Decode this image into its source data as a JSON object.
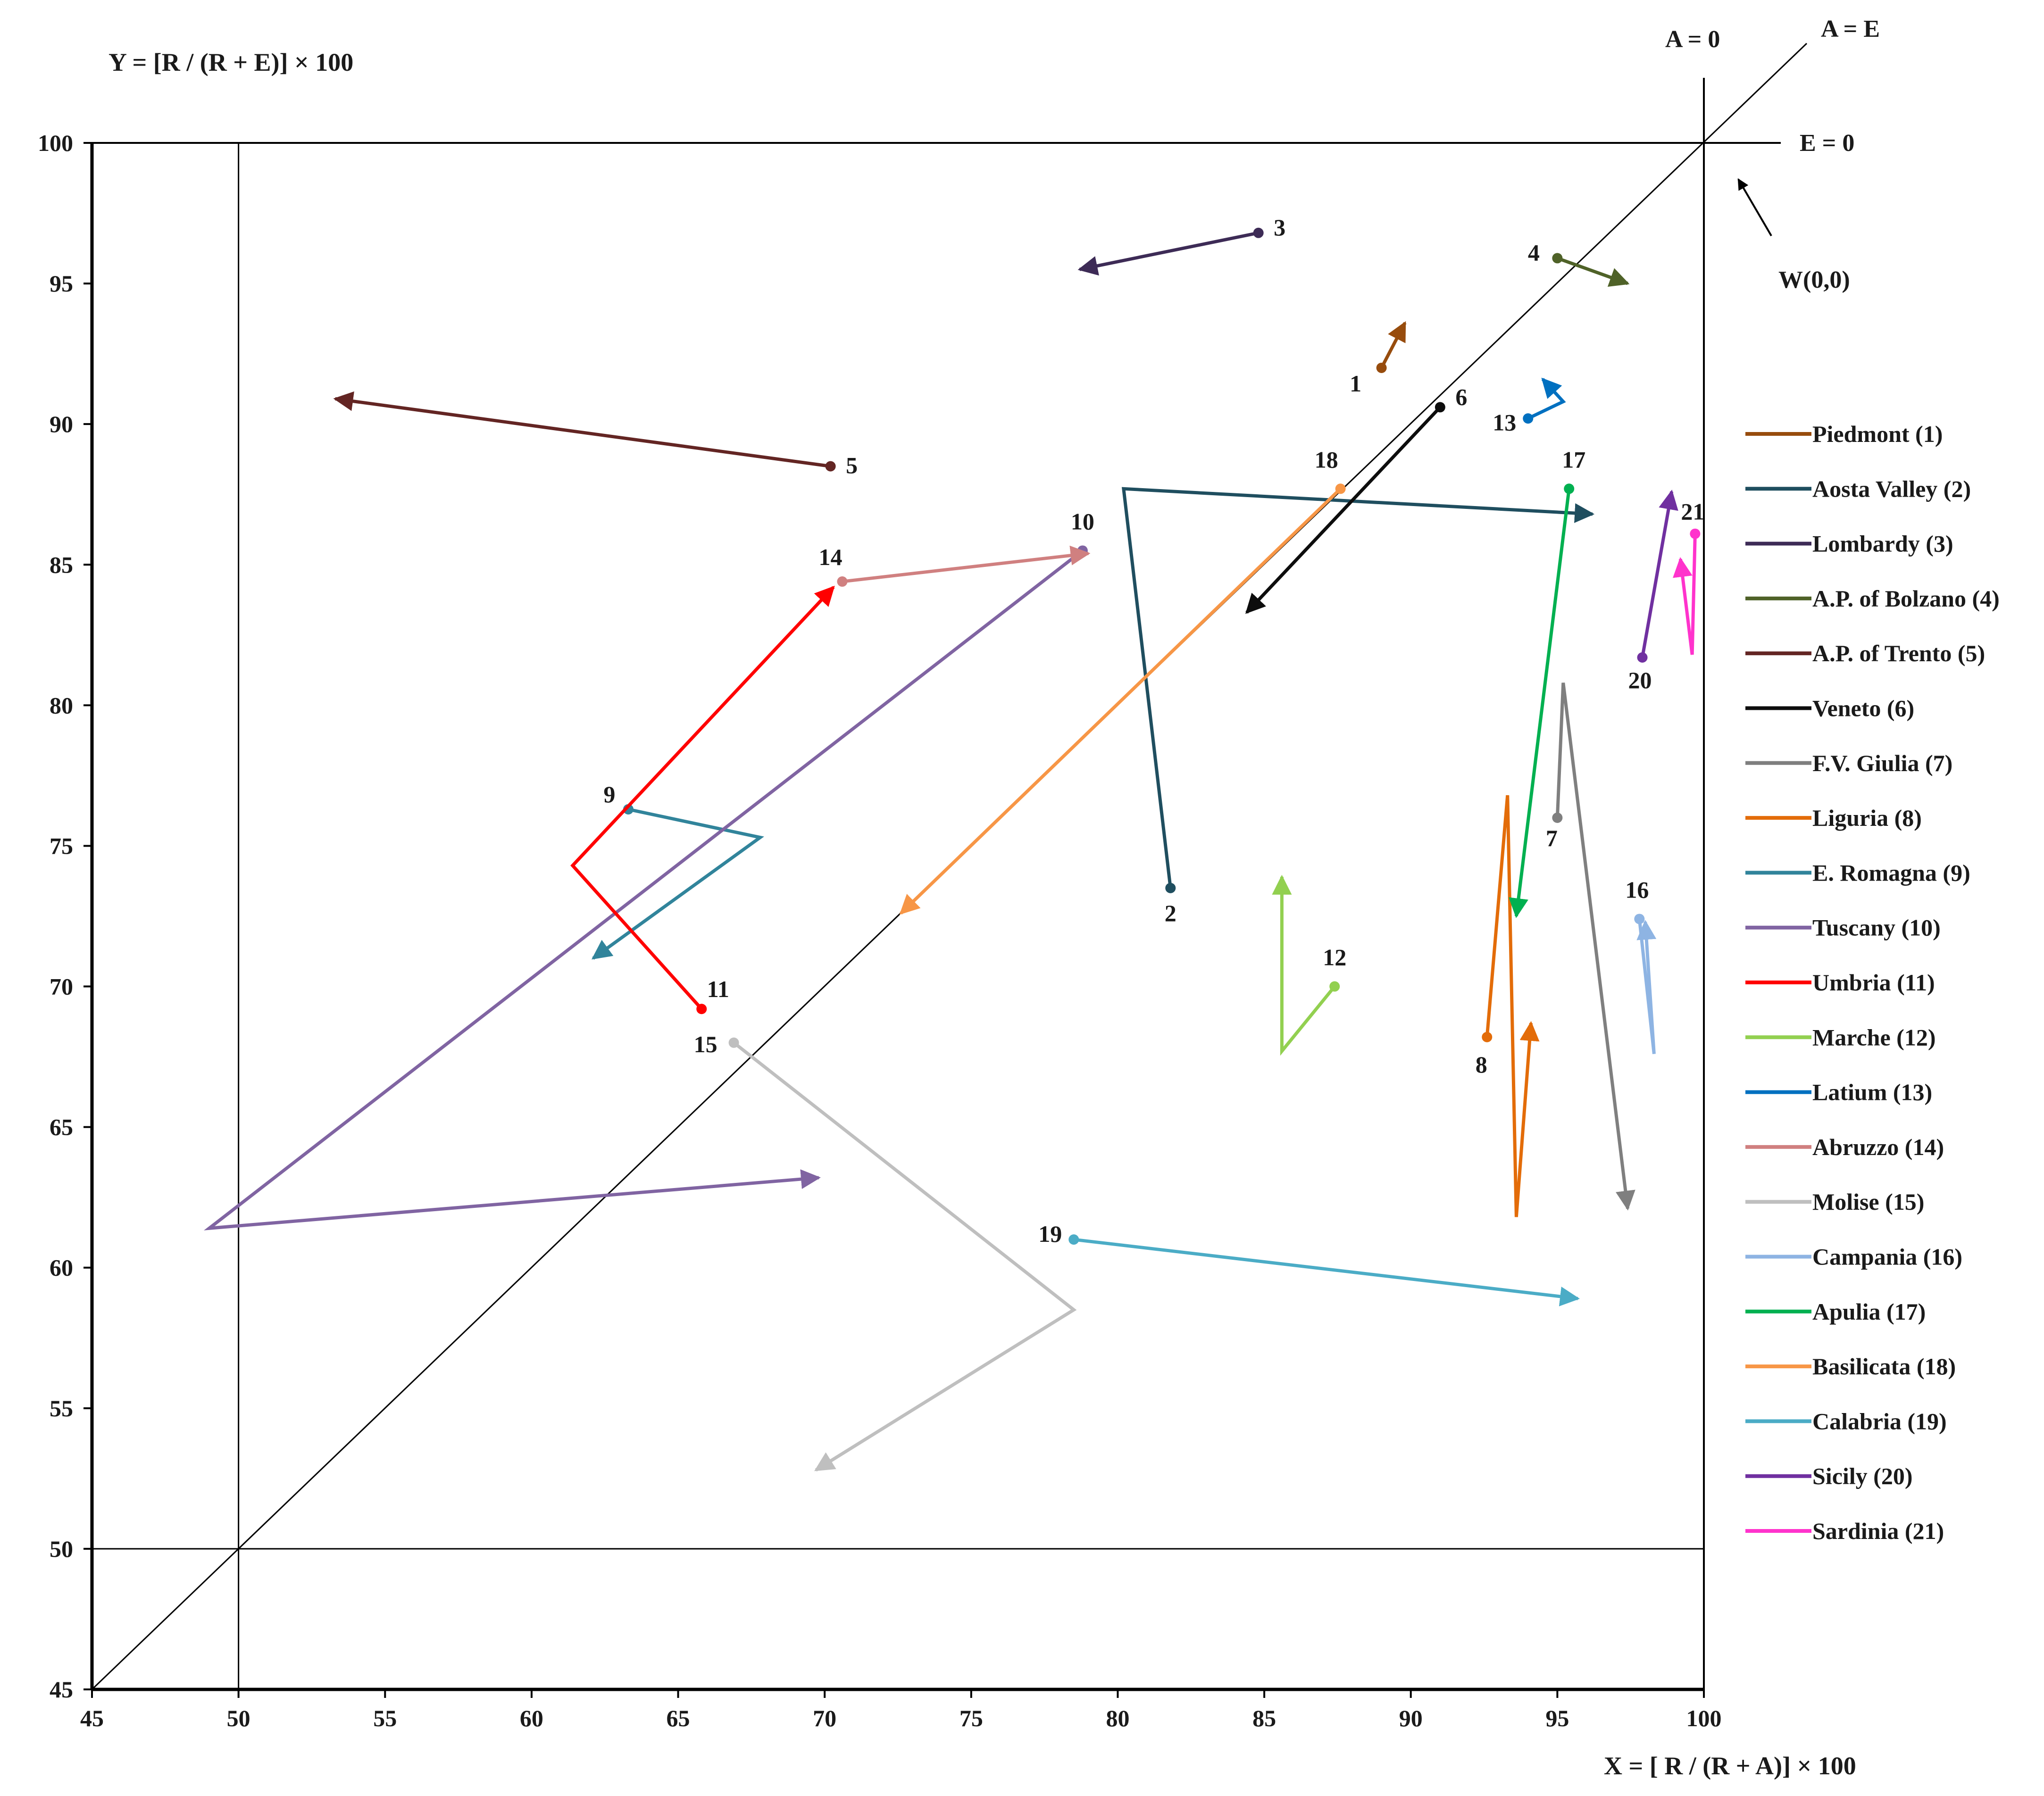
{
  "chart_data": {
    "type": "line",
    "y_axis_title": "Y = [R / (R + E)] × 100",
    "x_axis_title": "X = [ R / (R + A)] × 100",
    "xlim": [
      45,
      100
    ],
    "ylim": [
      45,
      100
    ],
    "xticks": [
      45,
      50,
      55,
      60,
      65,
      70,
      75,
      80,
      85,
      90,
      95,
      100
    ],
    "yticks": [
      45,
      50,
      55,
      60,
      65,
      70,
      75,
      80,
      85,
      90,
      95,
      100
    ],
    "reference_lines": {
      "a_zero_label": "A = 0",
      "a_equals_e_label": "A = E",
      "e_zero_label": "E = 0",
      "w_label": "W(0,0)"
    },
    "series": [
      {
        "id": "1",
        "name": "Piedmont (1)",
        "color": "#974c0d",
        "points": [
          [
            89.0,
            92.0
          ],
          [
            89.8,
            93.6
          ]
        ]
      },
      {
        "id": "2",
        "name": "Aosta Valley (2)",
        "color": "#1f4e5f",
        "points": [
          [
            81.8,
            73.5
          ],
          [
            80.2,
            87.7
          ],
          [
            96.2,
            86.8
          ]
        ]
      },
      {
        "id": "3",
        "name": "Lombardy (3)",
        "color": "#3d2b56",
        "points": [
          [
            84.8,
            96.8
          ],
          [
            78.7,
            95.5
          ]
        ]
      },
      {
        "id": "4",
        "name": "A.P. of Bolzano (4)",
        "color": "#4f6228",
        "points": [
          [
            95.0,
            95.9
          ],
          [
            97.4,
            95.0
          ]
        ]
      },
      {
        "id": "5",
        "name": "A.P. of Trento (5)",
        "color": "#632523",
        "points": [
          [
            70.2,
            88.5
          ],
          [
            53.3,
            90.9
          ]
        ]
      },
      {
        "id": "6",
        "name": "Veneto (6)",
        "color": "#0d0d0d",
        "points": [
          [
            91.0,
            90.6
          ],
          [
            84.4,
            83.3
          ]
        ]
      },
      {
        "id": "7",
        "name": "F.V. Giulia (7)",
        "color": "#7f7f7f",
        "points": [
          [
            95.0,
            76.0
          ],
          [
            95.2,
            80.8
          ],
          [
            97.4,
            62.1
          ]
        ]
      },
      {
        "id": "8",
        "name": "Liguria (8)",
        "color": "#e36c09",
        "points": [
          [
            92.6,
            68.2
          ],
          [
            93.3,
            76.8
          ],
          [
            93.6,
            61.8
          ],
          [
            94.1,
            68.7
          ]
        ]
      },
      {
        "id": "9",
        "name": "E. Romagna (9)",
        "color": "#31849b",
        "points": [
          [
            63.3,
            76.3
          ],
          [
            67.8,
            75.3
          ],
          [
            62.1,
            71.0
          ]
        ]
      },
      {
        "id": "10",
        "name": "Tuscany (10)",
        "color": "#8064a2",
        "points": [
          [
            78.8,
            85.5
          ],
          [
            49.0,
            61.4
          ],
          [
            69.8,
            63.2
          ]
        ]
      },
      {
        "id": "11",
        "name": "Umbria (11)",
        "color": "#ff0000",
        "points": [
          [
            65.8,
            69.2
          ],
          [
            61.4,
            74.3
          ],
          [
            70.3,
            84.2
          ]
        ]
      },
      {
        "id": "12",
        "name": "Marche (12)",
        "color": "#92d050",
        "points": [
          [
            87.4,
            70.0
          ],
          [
            85.6,
            67.7
          ],
          [
            85.6,
            73.9
          ]
        ]
      },
      {
        "id": "13",
        "name": "Latium (13)",
        "color": "#0070c0",
        "points": [
          [
            94.0,
            90.2
          ],
          [
            95.2,
            90.8
          ],
          [
            94.5,
            91.6
          ]
        ]
      },
      {
        "id": "14",
        "name": "Abruzzo (14)",
        "color": "#d08080",
        "points": [
          [
            70.6,
            84.4
          ],
          [
            79.0,
            85.4
          ]
        ]
      },
      {
        "id": "15",
        "name": "Molise (15)",
        "color": "#bfbfbf",
        "points": [
          [
            66.9,
            68.0
          ],
          [
            78.5,
            58.5
          ],
          [
            69.7,
            52.8
          ]
        ]
      },
      {
        "id": "16",
        "name": "Campania (16)",
        "color": "#8eb4e3",
        "points": [
          [
            97.8,
            72.4
          ],
          [
            98.3,
            67.6
          ],
          [
            98.0,
            72.3
          ]
        ]
      },
      {
        "id": "17",
        "name": "Apulia (17)",
        "color": "#00b050",
        "points": [
          [
            95.4,
            87.7
          ],
          [
            93.6,
            72.5
          ]
        ]
      },
      {
        "id": "18",
        "name": "Basilicata (18)",
        "color": "#f79646",
        "points": [
          [
            87.6,
            87.7
          ],
          [
            72.6,
            72.6
          ]
        ]
      },
      {
        "id": "19",
        "name": "Calabria (19)",
        "color": "#4bacc6",
        "points": [
          [
            78.5,
            61.0
          ],
          [
            95.7,
            58.9
          ]
        ]
      },
      {
        "id": "20",
        "name": "Sicily (20)",
        "color": "#7030a0",
        "points": [
          [
            97.9,
            81.7
          ],
          [
            98.9,
            87.6
          ]
        ]
      },
      {
        "id": "21",
        "name": "Sardinia (21)",
        "color": "#ff33cc",
        "points": [
          [
            99.7,
            86.1
          ],
          [
            99.6,
            81.8
          ],
          [
            99.2,
            85.2
          ]
        ]
      }
    ]
  }
}
